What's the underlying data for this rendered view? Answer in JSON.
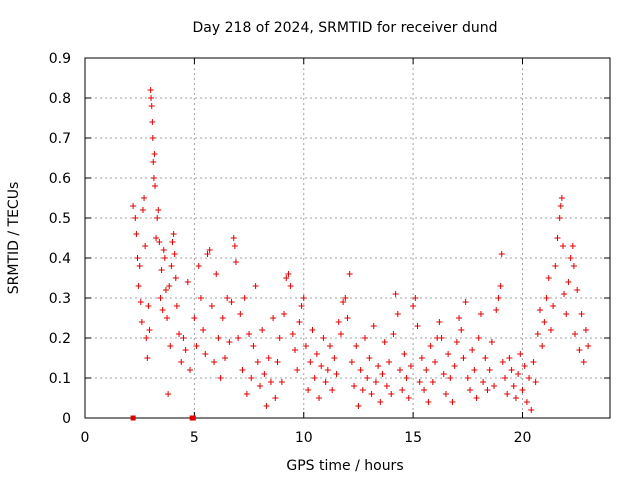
{
  "chart_data": {
    "type": "scatter",
    "title": "Day 218 of 2024, SRMTID for receiver dund",
    "xlabel": "GPS time / hours",
    "ylabel": "SRMTID / TECUs",
    "xlim": [
      0,
      24
    ],
    "ylim": [
      0,
      0.9
    ],
    "xticks": [
      "0",
      "5",
      "10",
      "15",
      "20"
    ],
    "yticks": [
      "0",
      "0.1",
      "0.2",
      "0.3",
      "0.4",
      "0.5",
      "0.6",
      "0.7",
      "0.8",
      "0.9"
    ],
    "grid": true,
    "marker": "+",
    "color": "#e00000",
    "series": [
      {
        "name": "SRMTID",
        "points": [
          [
            2.2,
            0.53
          ],
          [
            2.3,
            0.5
          ],
          [
            2.35,
            0.46
          ],
          [
            2.4,
            0.4
          ],
          [
            2.45,
            0.33
          ],
          [
            2.5,
            0.38
          ],
          [
            2.55,
            0.29
          ],
          [
            2.6,
            0.24
          ],
          [
            2.65,
            0.52
          ],
          [
            2.7,
            0.55
          ],
          [
            2.75,
            0.43
          ],
          [
            2.8,
            0.2
          ],
          [
            2.85,
            0.15
          ],
          [
            2.9,
            0.28
          ],
          [
            2.95,
            0.22
          ],
          [
            3.0,
            0.82
          ],
          [
            3.02,
            0.8
          ],
          [
            3.05,
            0.78
          ],
          [
            3.08,
            0.74
          ],
          [
            3.1,
            0.7
          ],
          [
            3.12,
            0.64
          ],
          [
            3.15,
            0.6
          ],
          [
            3.18,
            0.66
          ],
          [
            3.2,
            0.58
          ],
          [
            3.25,
            0.45
          ],
          [
            3.3,
            0.5
          ],
          [
            3.35,
            0.52
          ],
          [
            3.4,
            0.44
          ],
          [
            3.45,
            0.3
          ],
          [
            3.5,
            0.37
          ],
          [
            3.55,
            0.27
          ],
          [
            3.6,
            0.42
          ],
          [
            3.65,
            0.4
          ],
          [
            3.7,
            0.32
          ],
          [
            3.75,
            0.25
          ],
          [
            3.8,
            0.06
          ],
          [
            3.85,
            0.33
          ],
          [
            3.9,
            0.18
          ],
          [
            3.95,
            0.38
          ],
          [
            4.0,
            0.44
          ],
          [
            4.05,
            0.46
          ],
          [
            4.1,
            0.41
          ],
          [
            4.15,
            0.35
          ],
          [
            4.2,
            0.28
          ],
          [
            4.3,
            0.21
          ],
          [
            4.4,
            0.14
          ],
          [
            4.5,
            0.2
          ],
          [
            4.6,
            0.17
          ],
          [
            4.7,
            0.34
          ],
          [
            4.8,
            0.12
          ],
          [
            5.0,
            0.25
          ],
          [
            5.1,
            0.18
          ],
          [
            5.2,
            0.38
          ],
          [
            5.3,
            0.3
          ],
          [
            5.4,
            0.22
          ],
          [
            5.5,
            0.16
          ],
          [
            5.6,
            0.41
          ],
          [
            5.7,
            0.42
          ],
          [
            5.8,
            0.28
          ],
          [
            5.9,
            0.14
          ],
          [
            6.0,
            0.36
          ],
          [
            6.1,
            0.2
          ],
          [
            6.2,
            0.1
          ],
          [
            6.3,
            0.25
          ],
          [
            6.4,
            0.15
          ],
          [
            6.5,
            0.3
          ],
          [
            6.6,
            0.19
          ],
          [
            6.7,
            0.29
          ],
          [
            6.8,
            0.45
          ],
          [
            6.85,
            0.43
          ],
          [
            6.9,
            0.39
          ],
          [
            7.0,
            0.2
          ],
          [
            7.1,
            0.26
          ],
          [
            7.2,
            0.12
          ],
          [
            7.3,
            0.3
          ],
          [
            7.4,
            0.06
          ],
          [
            7.5,
            0.21
          ],
          [
            7.6,
            0.1
          ],
          [
            7.7,
            0.18
          ],
          [
            7.8,
            0.33
          ],
          [
            7.9,
            0.14
          ],
          [
            8.0,
            0.08
          ],
          [
            8.1,
            0.22
          ],
          [
            8.2,
            0.11
          ],
          [
            8.3,
            0.03
          ],
          [
            8.4,
            0.15
          ],
          [
            8.5,
            0.09
          ],
          [
            8.6,
            0.25
          ],
          [
            8.7,
            0.05
          ],
          [
            8.8,
            0.14
          ],
          [
            8.9,
            0.2
          ],
          [
            9.0,
            0.09
          ],
          [
            9.1,
            0.26
          ],
          [
            9.2,
            0.35
          ],
          [
            9.3,
            0.36
          ],
          [
            9.4,
            0.33
          ],
          [
            9.5,
            0.21
          ],
          [
            9.6,
            0.17
          ],
          [
            9.7,
            0.12
          ],
          [
            9.8,
            0.24
          ],
          [
            9.9,
            0.28
          ],
          [
            10.0,
            0.3
          ],
          [
            10.1,
            0.18
          ],
          [
            10.2,
            0.07
          ],
          [
            10.3,
            0.14
          ],
          [
            10.4,
            0.22
          ],
          [
            10.5,
            0.1
          ],
          [
            10.6,
            0.16
          ],
          [
            10.7,
            0.05
          ],
          [
            10.8,
            0.13
          ],
          [
            10.9,
            0.2
          ],
          [
            11.0,
            0.09
          ],
          [
            11.1,
            0.12
          ],
          [
            11.2,
            0.18
          ],
          [
            11.3,
            0.07
          ],
          [
            11.4,
            0.15
          ],
          [
            11.5,
            0.11
          ],
          [
            11.6,
            0.24
          ],
          [
            11.7,
            0.21
          ],
          [
            11.8,
            0.29
          ],
          [
            11.9,
            0.3
          ],
          [
            12.0,
            0.25
          ],
          [
            12.1,
            0.36
          ],
          [
            12.2,
            0.14
          ],
          [
            12.3,
            0.08
          ],
          [
            12.4,
            0.18
          ],
          [
            12.5,
            0.03
          ],
          [
            12.6,
            0.12
          ],
          [
            12.7,
            0.07
          ],
          [
            12.8,
            0.2
          ],
          [
            12.9,
            0.1
          ],
          [
            13.0,
            0.15
          ],
          [
            13.1,
            0.06
          ],
          [
            13.2,
            0.23
          ],
          [
            13.3,
            0.09
          ],
          [
            13.4,
            0.13
          ],
          [
            13.5,
            0.04
          ],
          [
            13.6,
            0.11
          ],
          [
            13.7,
            0.19
          ],
          [
            13.8,
            0.08
          ],
          [
            13.9,
            0.14
          ],
          [
            14.0,
            0.06
          ],
          [
            14.1,
            0.21
          ],
          [
            14.2,
            0.31
          ],
          [
            14.3,
            0.26
          ],
          [
            14.4,
            0.12
          ],
          [
            14.5,
            0.07
          ],
          [
            14.6,
            0.16
          ],
          [
            14.7,
            0.1
          ],
          [
            14.8,
            0.05
          ],
          [
            14.9,
            0.13
          ],
          [
            15.0,
            0.28
          ],
          [
            15.1,
            0.3
          ],
          [
            15.2,
            0.23
          ],
          [
            15.3,
            0.09
          ],
          [
            15.4,
            0.15
          ],
          [
            15.5,
            0.07
          ],
          [
            15.6,
            0.12
          ],
          [
            15.7,
            0.04
          ],
          [
            15.8,
            0.18
          ],
          [
            15.9,
            0.09
          ],
          [
            16.0,
            0.14
          ],
          [
            16.1,
            0.2
          ],
          [
            16.2,
            0.24
          ],
          [
            16.3,
            0.2
          ],
          [
            16.4,
            0.11
          ],
          [
            16.5,
            0.06
          ],
          [
            16.6,
            0.16
          ],
          [
            16.7,
            0.1
          ],
          [
            16.8,
            0.04
          ],
          [
            16.9,
            0.13
          ],
          [
            17.0,
            0.19
          ],
          [
            17.1,
            0.25
          ],
          [
            17.2,
            0.22
          ],
          [
            17.3,
            0.15
          ],
          [
            17.4,
            0.29
          ],
          [
            17.5,
            0.1
          ],
          [
            17.6,
            0.07
          ],
          [
            17.7,
            0.17
          ],
          [
            17.8,
            0.12
          ],
          [
            17.9,
            0.05
          ],
          [
            18.0,
            0.2
          ],
          [
            18.1,
            0.26
          ],
          [
            18.2,
            0.09
          ],
          [
            18.3,
            0.15
          ],
          [
            18.4,
            0.07
          ],
          [
            18.5,
            0.12
          ],
          [
            18.6,
            0.19
          ],
          [
            18.7,
            0.08
          ],
          [
            18.8,
            0.27
          ],
          [
            18.9,
            0.3
          ],
          [
            19.0,
            0.33
          ],
          [
            19.05,
            0.41
          ],
          [
            19.1,
            0.14
          ],
          [
            19.2,
            0.1
          ],
          [
            19.3,
            0.06
          ],
          [
            19.4,
            0.15
          ],
          [
            19.5,
            0.12
          ],
          [
            19.6,
            0.08
          ],
          [
            19.7,
            0.05
          ],
          [
            19.8,
            0.11
          ],
          [
            19.9,
            0.16
          ],
          [
            20.0,
            0.07
          ],
          [
            20.1,
            0.13
          ],
          [
            20.2,
            0.04
          ],
          [
            20.3,
            0.1
          ],
          [
            20.4,
            0.02
          ],
          [
            20.5,
            0.14
          ],
          [
            20.6,
            0.09
          ],
          [
            20.7,
            0.21
          ],
          [
            20.8,
            0.27
          ],
          [
            20.9,
            0.18
          ],
          [
            21.0,
            0.24
          ],
          [
            21.1,
            0.3
          ],
          [
            21.2,
            0.35
          ],
          [
            21.3,
            0.22
          ],
          [
            21.4,
            0.28
          ],
          [
            21.5,
            0.38
          ],
          [
            21.6,
            0.45
          ],
          [
            21.7,
            0.5
          ],
          [
            21.75,
            0.53
          ],
          [
            21.8,
            0.55
          ],
          [
            21.85,
            0.43
          ],
          [
            21.9,
            0.31
          ],
          [
            22.0,
            0.26
          ],
          [
            22.1,
            0.34
          ],
          [
            22.2,
            0.4
          ],
          [
            22.3,
            0.43
          ],
          [
            22.35,
            0.38
          ],
          [
            22.4,
            0.21
          ],
          [
            22.5,
            0.32
          ],
          [
            22.6,
            0.17
          ],
          [
            22.7,
            0.26
          ],
          [
            22.8,
            0.14
          ],
          [
            22.9,
            0.22
          ],
          [
            23.0,
            0.18
          ]
        ]
      }
    ],
    "zero_markers": [
      [
        2.2,
        0
      ],
      [
        4.9,
        0
      ],
      [
        4.95,
        0
      ]
    ]
  }
}
